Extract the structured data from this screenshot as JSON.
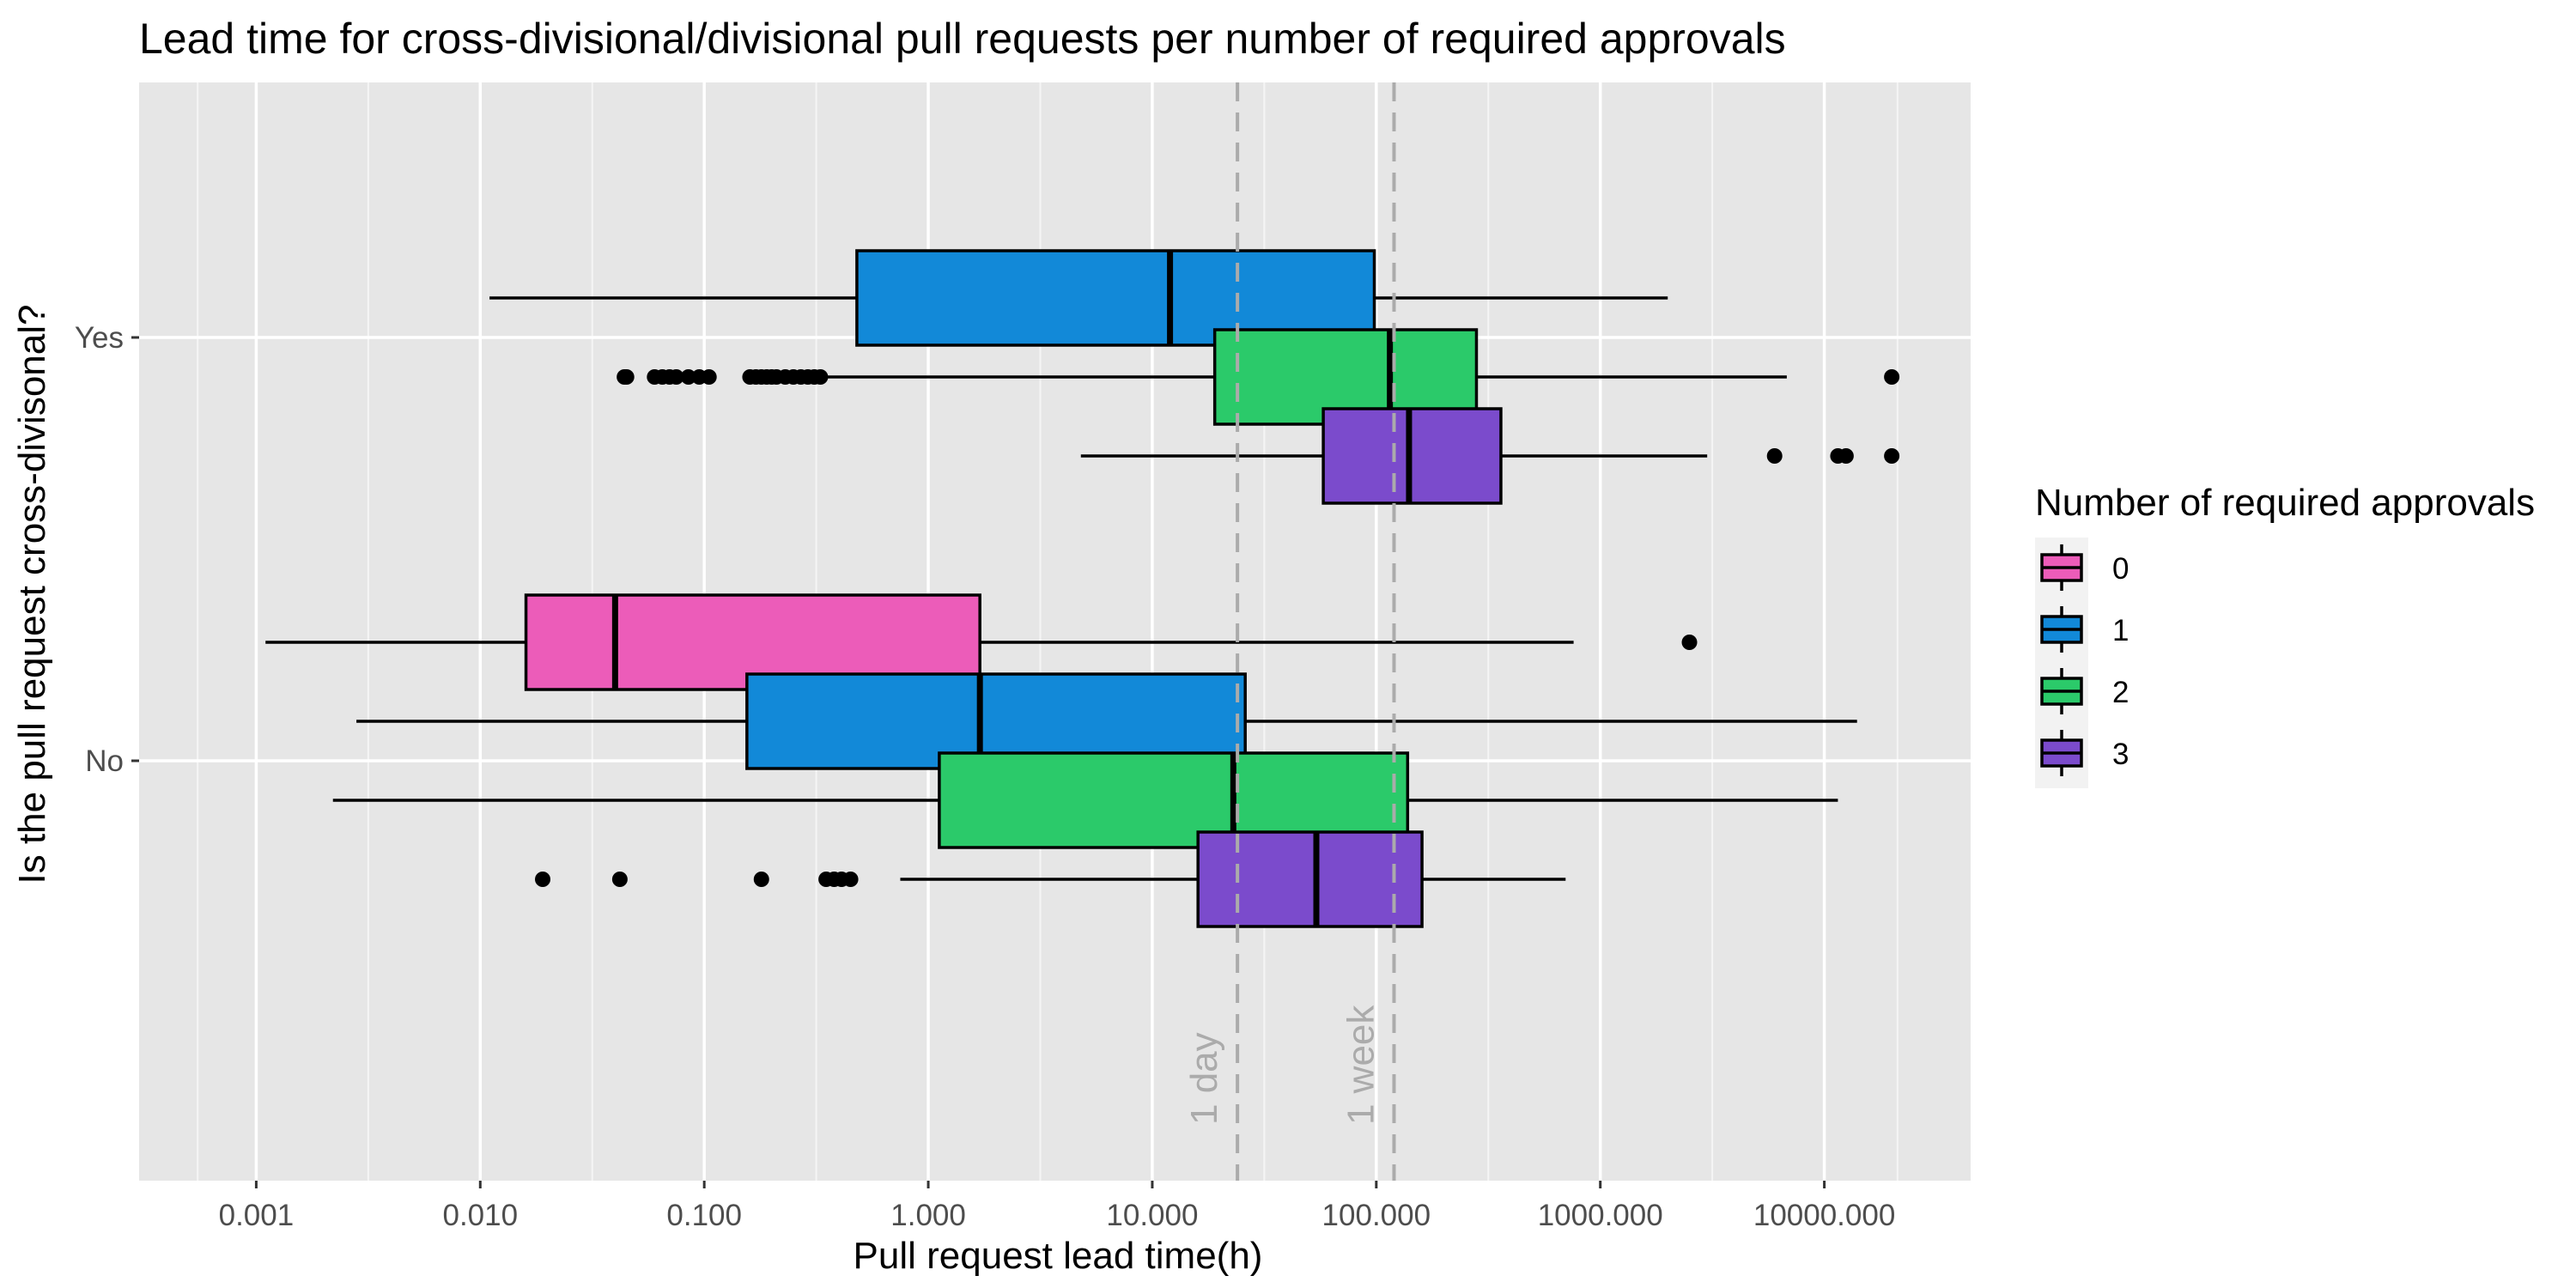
{
  "chart_data": {
    "type": "boxplot",
    "orientation": "horizontal",
    "title": "Lead time for cross-divisional/divisional pull requests per number of required approvals",
    "xlabel": "Pull request lead time(h)",
    "ylabel": "Is the pull request cross-divisonal?",
    "x_scale": "log10",
    "xlim": [
      0.0003,
      45000
    ],
    "x_ticks": [
      0.001,
      0.01,
      0.1,
      1,
      10,
      100,
      1000,
      10000
    ],
    "x_tick_labels": [
      "0.001",
      "0.010",
      "0.100",
      "1.000",
      "10.000",
      "100.000",
      "1000.000",
      "10000.000"
    ],
    "categories": [
      "No",
      "Yes"
    ],
    "grid": true,
    "legend": {
      "title": "Number of required approvals",
      "position": "right",
      "entries": [
        {
          "label": "0",
          "color": "#ec5cb9"
        },
        {
          "label": "1",
          "color": "#1289d8"
        },
        {
          "label": "2",
          "color": "#2bca6a"
        },
        {
          "label": "3",
          "color": "#7b4bcc"
        }
      ]
    },
    "reference_lines": [
      {
        "label": "1 day",
        "x": 24
      },
      {
        "label": "1 week",
        "x": 120
      }
    ],
    "groups": [
      {
        "category": "No",
        "boxes": [
          {
            "approvals": "0",
            "min": 0.0011,
            "q1": 0.016,
            "median": 0.04,
            "q3": 1.7,
            "max": 760,
            "outliers": [
              2500
            ]
          },
          {
            "approvals": "1",
            "min": 0.0028,
            "q1": 0.155,
            "median": 1.7,
            "q3": 26,
            "max": 14000,
            "outliers": []
          },
          {
            "approvals": "2",
            "min": 0.0022,
            "q1": 1.12,
            "median": 23,
            "q3": 138,
            "max": 11500,
            "outliers": []
          },
          {
            "approvals": "3",
            "min": 0.75,
            "q1": 16,
            "median": 54,
            "q3": 160,
            "max": 700,
            "outliers": [
              0.019,
              0.042,
              0.18,
              0.35,
              0.38,
              0.41,
              0.45
            ]
          }
        ]
      },
      {
        "category": "Yes",
        "boxes": [
          {
            "approvals": "0",
            "present": false
          },
          {
            "approvals": "1",
            "min": 0.011,
            "q1": 0.48,
            "median": 12,
            "q3": 98,
            "max": 2000,
            "outliers": []
          },
          {
            "approvals": "2",
            "min": 0.33,
            "q1": 19,
            "median": 115,
            "q3": 280,
            "max": 6800,
            "outliers": [
              0.044,
              0.045,
              0.06,
              0.065,
              0.07,
              0.075,
              0.085,
              0.095,
              0.105,
              0.16,
              0.17,
              0.18,
              0.19,
              0.2,
              0.21,
              0.23,
              0.25,
              0.27,
              0.29,
              0.31,
              0.33,
              20000
            ]
          },
          {
            "approvals": "3",
            "min": 4.8,
            "q1": 58,
            "median": 140,
            "q3": 360,
            "max": 3000,
            "outliers": [
              6000,
              11500,
              12500,
              20000
            ]
          }
        ]
      }
    ]
  }
}
